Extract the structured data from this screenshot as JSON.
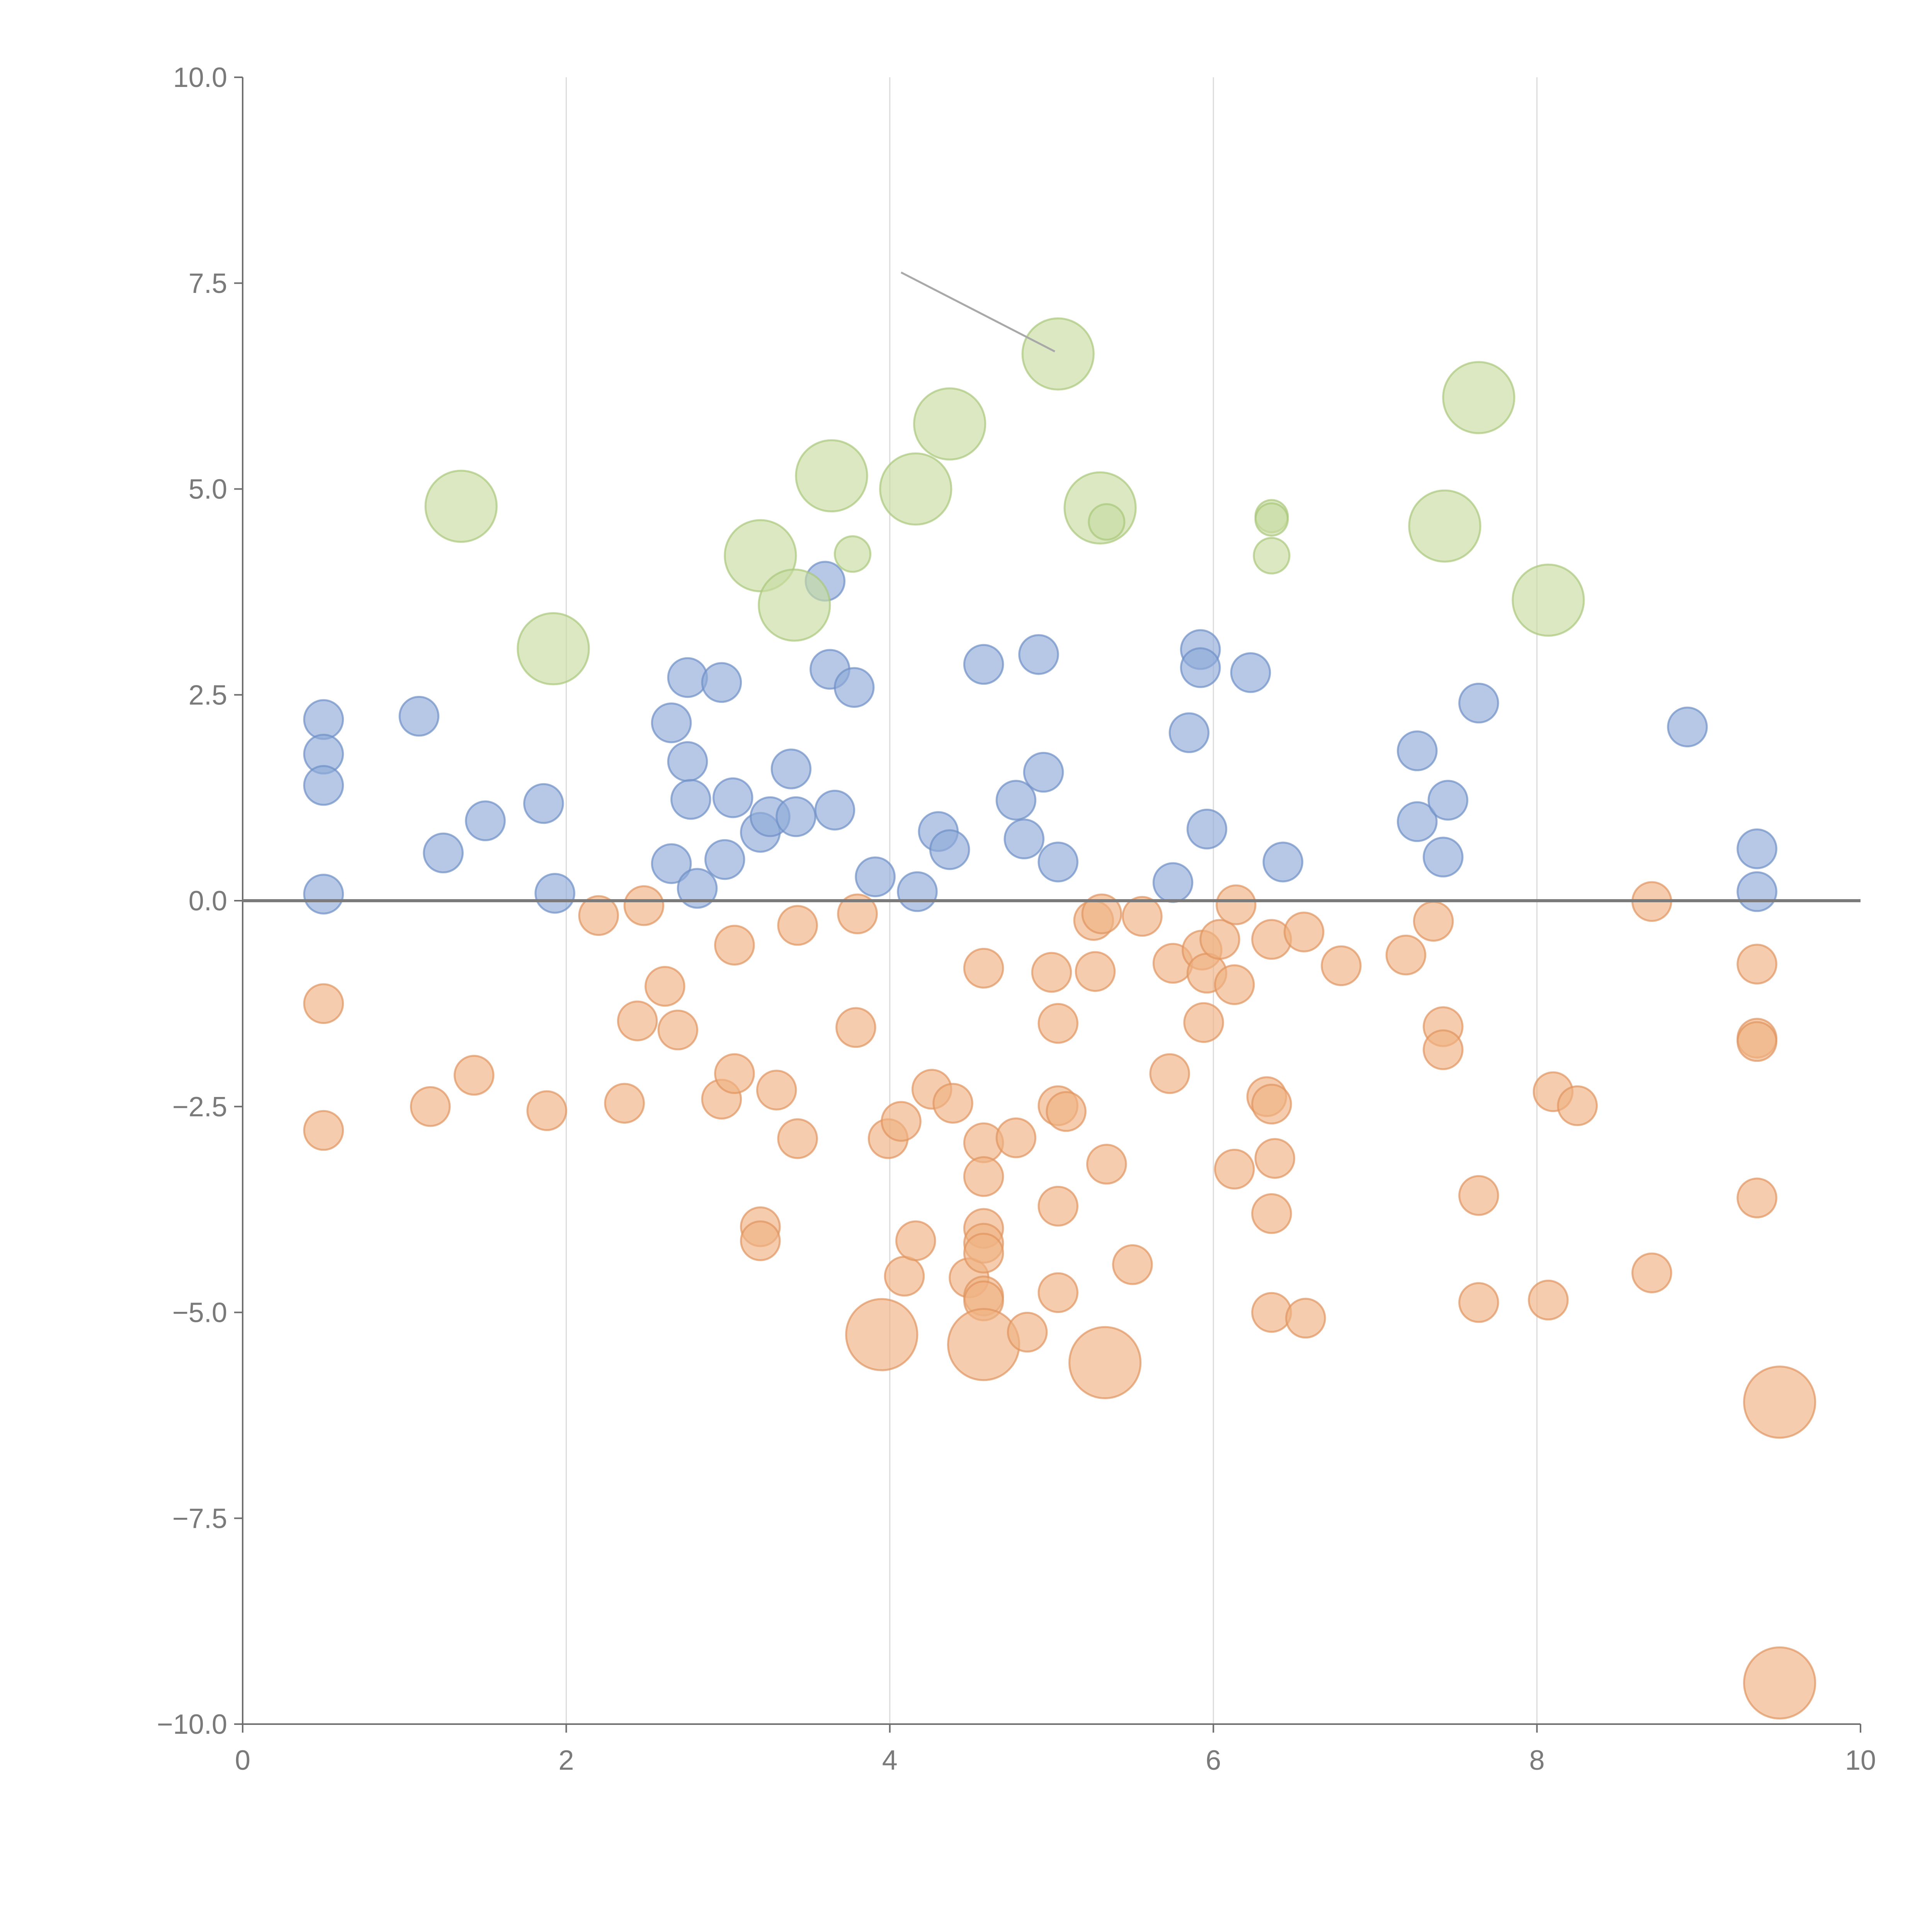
{
  "chart_data": {
    "type": "scatter",
    "title": "",
    "xlabel": "",
    "ylabel": "",
    "xlim": [
      0,
      10
    ],
    "ylim": [
      -10,
      10
    ],
    "grid": "vertical",
    "x_ticks": [
      "0",
      "2",
      "4",
      "6",
      "8",
      "10"
    ],
    "y_ticks": [
      "10.0",
      "7.5",
      "5.0",
      "2.5",
      "0.0",
      "−2.5",
      "−5.0",
      "−7.5",
      "−10.0"
    ],
    "series": [
      {
        "name": "blue",
        "color": "#8fabd8",
        "stroke": "#6d8fc6",
        "points": [
          {
            "x": 0.5,
            "y": 2.2,
            "r": 0.12
          },
          {
            "x": 0.5,
            "y": 1.78,
            "r": 0.12
          },
          {
            "x": 0.5,
            "y": 1.4,
            "r": 0.12
          },
          {
            "x": 0.5,
            "y": 0.08,
            "r": 0.12
          },
          {
            "x": 1.09,
            "y": 2.24,
            "r": 0.12
          },
          {
            "x": 1.24,
            "y": 0.58,
            "r": 0.12
          },
          {
            "x": 1.5,
            "y": 0.97,
            "r": 0.12
          },
          {
            "x": 1.86,
            "y": 1.18,
            "r": 0.12
          },
          {
            "x": 1.93,
            "y": 0.09,
            "r": 0.12
          },
          {
            "x": 2.65,
            "y": 2.16,
            "r": 0.12
          },
          {
            "x": 2.75,
            "y": 2.71,
            "r": 0.12
          },
          {
            "x": 2.75,
            "y": 1.69,
            "r": 0.12
          },
          {
            "x": 2.77,
            "y": 1.23,
            "r": 0.12
          },
          {
            "x": 2.65,
            "y": 0.45,
            "r": 0.12
          },
          {
            "x": 2.81,
            "y": 0.15,
            "r": 0.12
          },
          {
            "x": 2.96,
            "y": 2.65,
            "r": 0.12
          },
          {
            "x": 3.03,
            "y": 1.25,
            "r": 0.12
          },
          {
            "x": 2.98,
            "y": 0.5,
            "r": 0.12
          },
          {
            "x": 3.2,
            "y": 0.83,
            "r": 0.12
          },
          {
            "x": 3.26,
            "y": 1.02,
            "r": 0.12
          },
          {
            "x": 3.39,
            "y": 1.6,
            "r": 0.12
          },
          {
            "x": 3.42,
            "y": 1.02,
            "r": 0.12
          },
          {
            "x": 3.6,
            "y": 3.88,
            "r": 0.12
          },
          {
            "x": 3.63,
            "y": 2.81,
            "r": 0.12
          },
          {
            "x": 3.78,
            "y": 2.59,
            "r": 0.12
          },
          {
            "x": 3.66,
            "y": 1.1,
            "r": 0.12
          },
          {
            "x": 3.91,
            "y": 0.29,
            "r": 0.12
          },
          {
            "x": 4.17,
            "y": 0.11,
            "r": 0.12
          },
          {
            "x": 4.3,
            "y": 0.84,
            "r": 0.12
          },
          {
            "x": 4.37,
            "y": 0.62,
            "r": 0.12
          },
          {
            "x": 4.58,
            "y": 2.87,
            "r": 0.12
          },
          {
            "x": 4.78,
            "y": 1.22,
            "r": 0.12
          },
          {
            "x": 4.83,
            "y": 0.75,
            "r": 0.12
          },
          {
            "x": 4.92,
            "y": 2.99,
            "r": 0.12
          },
          {
            "x": 4.95,
            "y": 1.56,
            "r": 0.12
          },
          {
            "x": 5.04,
            "y": 0.47,
            "r": 0.12
          },
          {
            "x": 5.75,
            "y": 0.22,
            "r": 0.12
          },
          {
            "x": 5.85,
            "y": 2.04,
            "r": 0.12
          },
          {
            "x": 5.92,
            "y": 3.05,
            "r": 0.12
          },
          {
            "x": 5.92,
            "y": 2.83,
            "r": 0.12
          },
          {
            "x": 5.96,
            "y": 0.87,
            "r": 0.12
          },
          {
            "x": 6.23,
            "y": 2.77,
            "r": 0.12
          },
          {
            "x": 6.43,
            "y": 0.47,
            "r": 0.12
          },
          {
            "x": 7.26,
            "y": 1.82,
            "r": 0.12
          },
          {
            "x": 7.26,
            "y": 0.96,
            "r": 0.12
          },
          {
            "x": 7.45,
            "y": 1.22,
            "r": 0.12
          },
          {
            "x": 7.42,
            "y": 0.53,
            "r": 0.12
          },
          {
            "x": 7.64,
            "y": 2.4,
            "r": 0.12
          },
          {
            "x": 8.93,
            "y": 2.11,
            "r": 0.12
          },
          {
            "x": 9.36,
            "y": 0.63,
            "r": 0.12
          },
          {
            "x": 9.36,
            "y": 0.11,
            "r": 0.12
          }
        ]
      },
      {
        "name": "orange",
        "color": "#f0b283",
        "stroke": "#e09460",
        "points": [
          {
            "x": 0.5,
            "y": -1.25,
            "r": 0.12
          },
          {
            "x": 0.5,
            "y": -2.79,
            "r": 0.12
          },
          {
            "x": 1.16,
            "y": -2.5,
            "r": 0.12
          },
          {
            "x": 1.43,
            "y": -2.12,
            "r": 0.12
          },
          {
            "x": 1.88,
            "y": -2.55,
            "r": 0.12
          },
          {
            "x": 2.2,
            "y": -0.18,
            "r": 0.12
          },
          {
            "x": 2.48,
            "y": -0.06,
            "r": 0.12
          },
          {
            "x": 2.36,
            "y": -2.46,
            "r": 0.12
          },
          {
            "x": 2.44,
            "y": -1.46,
            "r": 0.12
          },
          {
            "x": 2.61,
            "y": -1.04,
            "r": 0.12
          },
          {
            "x": 2.69,
            "y": -1.57,
            "r": 0.12
          },
          {
            "x": 2.96,
            "y": -2.41,
            "r": 0.12
          },
          {
            "x": 3.04,
            "y": -0.54,
            "r": 0.12
          },
          {
            "x": 3.04,
            "y": -2.1,
            "r": 0.12
          },
          {
            "x": 3.3,
            "y": -2.3,
            "r": 0.12
          },
          {
            "x": 3.43,
            "y": -0.3,
            "r": 0.12
          },
          {
            "x": 3.43,
            "y": -2.89,
            "r": 0.12
          },
          {
            "x": 3.2,
            "y": -3.96,
            "r": 0.12
          },
          {
            "x": 3.2,
            "y": -4.13,
            "r": 0.12
          },
          {
            "x": 3.8,
            "y": -0.16,
            "r": 0.12
          },
          {
            "x": 3.79,
            "y": -1.54,
            "r": 0.12
          },
          {
            "x": 3.99,
            "y": -2.89,
            "r": 0.12
          },
          {
            "x": 4.07,
            "y": -2.68,
            "r": 0.12
          },
          {
            "x": 4.09,
            "y": -4.56,
            "r": 0.12
          },
          {
            "x": 4.16,
            "y": -4.13,
            "r": 0.12
          },
          {
            "x": 3.95,
            "y": -5.27,
            "r": 0.22
          },
          {
            "x": 4.26,
            "y": -2.29,
            "r": 0.12
          },
          {
            "x": 4.39,
            "y": -2.46,
            "r": 0.12
          },
          {
            "x": 4.49,
            "y": -4.58,
            "r": 0.12
          },
          {
            "x": 4.58,
            "y": -0.82,
            "r": 0.12
          },
          {
            "x": 4.58,
            "y": -2.94,
            "r": 0.12
          },
          {
            "x": 4.58,
            "y": -3.35,
            "r": 0.12
          },
          {
            "x": 4.58,
            "y": -3.98,
            "r": 0.12
          },
          {
            "x": 4.58,
            "y": -4.16,
            "r": 0.12
          },
          {
            "x": 4.58,
            "y": -4.28,
            "r": 0.12
          },
          {
            "x": 4.58,
            "y": -4.8,
            "r": 0.12
          },
          {
            "x": 4.58,
            "y": -4.86,
            "r": 0.12
          },
          {
            "x": 4.58,
            "y": -5.39,
            "r": 0.22
          },
          {
            "x": 4.78,
            "y": -2.88,
            "r": 0.12
          },
          {
            "x": 4.85,
            "y": -5.24,
            "r": 0.12
          },
          {
            "x": 5.0,
            "y": -0.87,
            "r": 0.12
          },
          {
            "x": 5.04,
            "y": -1.49,
            "r": 0.12
          },
          {
            "x": 5.04,
            "y": -2.49,
            "r": 0.12
          },
          {
            "x": 5.09,
            "y": -2.56,
            "r": 0.12
          },
          {
            "x": 5.04,
            "y": -3.71,
            "r": 0.12
          },
          {
            "x": 5.04,
            "y": -4.76,
            "r": 0.12
          },
          {
            "x": 5.26,
            "y": -0.24,
            "r": 0.12
          },
          {
            "x": 5.31,
            "y": -0.16,
            "r": 0.12
          },
          {
            "x": 5.27,
            "y": -0.86,
            "r": 0.12
          },
          {
            "x": 5.34,
            "y": -3.2,
            "r": 0.12
          },
          {
            "x": 5.33,
            "y": -5.61,
            "r": 0.22
          },
          {
            "x": 5.5,
            "y": -4.42,
            "r": 0.12
          },
          {
            "x": 5.56,
            "y": -0.19,
            "r": 0.12
          },
          {
            "x": 5.73,
            "y": -2.1,
            "r": 0.12
          },
          {
            "x": 5.75,
            "y": -0.76,
            "r": 0.12
          },
          {
            "x": 5.93,
            "y": -0.6,
            "r": 0.12
          },
          {
            "x": 5.96,
            "y": -0.88,
            "r": 0.12
          },
          {
            "x": 5.94,
            "y": -1.48,
            "r": 0.12
          },
          {
            "x": 6.04,
            "y": -0.47,
            "r": 0.12
          },
          {
            "x": 6.14,
            "y": -0.05,
            "r": 0.12
          },
          {
            "x": 6.13,
            "y": -1.02,
            "r": 0.12
          },
          {
            "x": 6.13,
            "y": -3.26,
            "r": 0.12
          },
          {
            "x": 6.36,
            "y": -0.47,
            "r": 0.12
          },
          {
            "x": 6.33,
            "y": -2.38,
            "r": 0.12
          },
          {
            "x": 6.36,
            "y": -2.47,
            "r": 0.12
          },
          {
            "x": 6.38,
            "y": -3.13,
            "r": 0.12
          },
          {
            "x": 6.36,
            "y": -3.8,
            "r": 0.12
          },
          {
            "x": 6.36,
            "y": -5.0,
            "r": 0.12
          },
          {
            "x": 6.56,
            "y": -0.38,
            "r": 0.12
          },
          {
            "x": 6.57,
            "y": -5.07,
            "r": 0.12
          },
          {
            "x": 6.79,
            "y": -0.79,
            "r": 0.12
          },
          {
            "x": 7.19,
            "y": -0.66,
            "r": 0.12
          },
          {
            "x": 7.36,
            "y": -0.25,
            "r": 0.12
          },
          {
            "x": 7.42,
            "y": -1.53,
            "r": 0.12
          },
          {
            "x": 7.42,
            "y": -1.81,
            "r": 0.12
          },
          {
            "x": 7.64,
            "y": -3.58,
            "r": 0.12
          },
          {
            "x": 7.64,
            "y": -4.88,
            "r": 0.12
          },
          {
            "x": 8.07,
            "y": -4.85,
            "r": 0.12
          },
          {
            "x": 8.1,
            "y": -2.32,
            "r": 0.12
          },
          {
            "x": 8.25,
            "y": -2.49,
            "r": 0.12
          },
          {
            "x": 8.71,
            "y": -0.01,
            "r": 0.12
          },
          {
            "x": 8.71,
            "y": -4.52,
            "r": 0.12
          },
          {
            "x": 9.36,
            "y": -0.77,
            "r": 0.12
          },
          {
            "x": 9.36,
            "y": -1.67,
            "r": 0.12
          },
          {
            "x": 9.36,
            "y": -1.71,
            "r": 0.12
          },
          {
            "x": 9.36,
            "y": -3.61,
            "r": 0.12
          },
          {
            "x": 9.5,
            "y": -6.09,
            "r": 0.22
          },
          {
            "x": 9.5,
            "y": -9.5,
            "r": 0.22
          }
        ]
      },
      {
        "name": "green",
        "color": "#c7dba1",
        "stroke": "#a9c77b",
        "points": [
          {
            "x": 1.35,
            "y": 4.79,
            "r": 0.22
          },
          {
            "x": 1.92,
            "y": 3.06,
            "r": 0.22
          },
          {
            "x": 3.2,
            "y": 4.19,
            "r": 0.22
          },
          {
            "x": 3.41,
            "y": 3.59,
            "r": 0.22
          },
          {
            "x": 3.64,
            "y": 5.16,
            "r": 0.22
          },
          {
            "x": 3.77,
            "y": 4.21,
            "r": 0.11
          },
          {
            "x": 4.16,
            "y": 5.0,
            "r": 0.22
          },
          {
            "x": 4.37,
            "y": 5.79,
            "r": 0.22
          },
          {
            "x": 5.04,
            "y": 6.64,
            "r": 0.22
          },
          {
            "x": 5.3,
            "y": 4.77,
            "r": 0.22
          },
          {
            "x": 5.34,
            "y": 4.6,
            "r": 0.11
          },
          {
            "x": 6.36,
            "y": 4.67,
            "r": 0.1
          },
          {
            "x": 6.36,
            "y": 4.63,
            "r": 0.1
          },
          {
            "x": 6.36,
            "y": 4.19,
            "r": 0.11
          },
          {
            "x": 7.43,
            "y": 4.55,
            "r": 0.22
          },
          {
            "x": 7.64,
            "y": 6.11,
            "r": 0.22
          },
          {
            "x": 8.07,
            "y": 3.65,
            "r": 0.22
          }
        ]
      }
    ]
  }
}
